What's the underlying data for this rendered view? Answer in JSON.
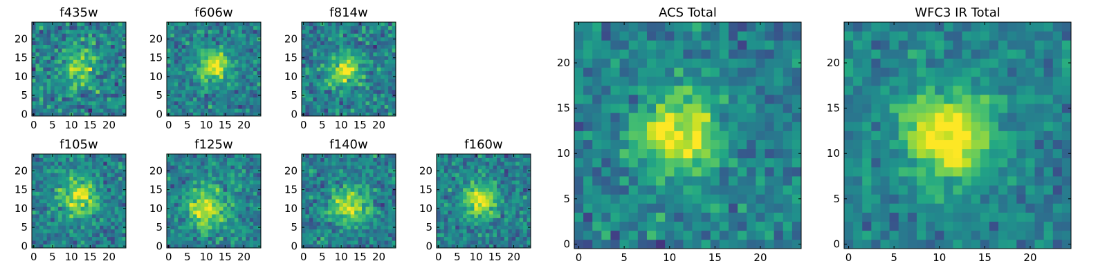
{
  "figure": {
    "background": "#ffffff",
    "colormap": "viridis"
  },
  "chart_data": [
    {
      "type": "heatmap",
      "title": "f435w",
      "grid": [
        25,
        25
      ],
      "xlim": [
        -0.5,
        24.5
      ],
      "ylim": [
        -0.5,
        24.5
      ],
      "xticks": [
        "0",
        "5",
        "10",
        "15",
        "20"
      ],
      "yticks": [
        "0",
        "5",
        "10",
        "15",
        "20"
      ],
      "center": [
        12,
        13
      ],
      "peak": 0.55,
      "sigma": 3.5,
      "noise": 0.55,
      "seed": 11
    },
    {
      "type": "heatmap",
      "title": "f606w",
      "grid": [
        25,
        25
      ],
      "xlim": [
        -0.5,
        24.5
      ],
      "ylim": [
        -0.5,
        24.5
      ],
      "xticks": [
        "0",
        "5",
        "10",
        "15",
        "20"
      ],
      "yticks": [
        "0",
        "5",
        "10",
        "15",
        "20"
      ],
      "center": [
        12,
        13
      ],
      "peak": 0.75,
      "sigma": 3.0,
      "noise": 0.45,
      "seed": 23
    },
    {
      "type": "heatmap",
      "title": "f814w",
      "grid": [
        25,
        25
      ],
      "xlim": [
        -0.5,
        24.5
      ],
      "ylim": [
        -0.5,
        24.5
      ],
      "xticks": [
        "0",
        "5",
        "10",
        "15",
        "20"
      ],
      "yticks": [
        "0",
        "5",
        "10",
        "15",
        "20"
      ],
      "center": [
        11,
        12
      ],
      "peak": 0.7,
      "sigma": 3.0,
      "noise": 0.5,
      "seed": 37
    },
    {
      "type": "heatmap",
      "title": "f105w",
      "grid": [
        25,
        25
      ],
      "xlim": [
        -0.5,
        24.5
      ],
      "ylim": [
        -0.5,
        24.5
      ],
      "xticks": [
        "0",
        "5",
        "10",
        "15",
        "20"
      ],
      "yticks": [
        "0",
        "5",
        "10",
        "15",
        "20"
      ],
      "center": [
        12,
        13
      ],
      "peak": 0.7,
      "sigma": 3.5,
      "noise": 0.45,
      "seed": 41
    },
    {
      "type": "heatmap",
      "title": "f125w",
      "grid": [
        25,
        25
      ],
      "xlim": [
        -0.5,
        24.5
      ],
      "ylim": [
        -0.5,
        24.5
      ],
      "xticks": [
        "0",
        "5",
        "10",
        "15",
        "20"
      ],
      "yticks": [
        "0",
        "5",
        "10",
        "15",
        "20"
      ],
      "center": [
        10,
        10
      ],
      "peak": 0.7,
      "sigma": 4.0,
      "noise": 0.45,
      "seed": 53
    },
    {
      "type": "heatmap",
      "title": "f140w",
      "grid": [
        25,
        25
      ],
      "xlim": [
        -0.5,
        24.5
      ],
      "ylim": [
        -0.5,
        24.5
      ],
      "xticks": [
        "0",
        "5",
        "10",
        "15",
        "20"
      ],
      "yticks": [
        "0",
        "5",
        "10",
        "15",
        "20"
      ],
      "center": [
        12,
        11
      ],
      "peak": 0.7,
      "sigma": 3.5,
      "noise": 0.45,
      "seed": 67
    },
    {
      "type": "heatmap",
      "title": "f160w",
      "grid": [
        25,
        25
      ],
      "xlim": [
        -0.5,
        24.5
      ],
      "ylim": [
        -0.5,
        24.5
      ],
      "xticks": [
        "0",
        "5",
        "10",
        "15",
        "20"
      ],
      "yticks": [
        "0",
        "5",
        "10",
        "15",
        "20"
      ],
      "center": [
        11,
        12
      ],
      "peak": 0.8,
      "sigma": 3.0,
      "noise": 0.45,
      "seed": 79
    },
    {
      "type": "heatmap",
      "title": "ACS Total",
      "grid": [
        25,
        25
      ],
      "xlim": [
        -0.5,
        24.5
      ],
      "ylim": [
        -0.5,
        24.5
      ],
      "xticks": [
        "0",
        "5",
        "10",
        "15",
        "20"
      ],
      "yticks": [
        "0",
        "5",
        "10",
        "15",
        "20"
      ],
      "center": [
        11,
        12
      ],
      "peak": 0.85,
      "sigma": 3.0,
      "noise": 0.42,
      "seed": 97
    },
    {
      "type": "heatmap",
      "title": "WFC3 IR Total",
      "grid": [
        25,
        25
      ],
      "xlim": [
        -0.5,
        24.5
      ],
      "ylim": [
        -0.5,
        24.5
      ],
      "xticks": [
        "0",
        "5",
        "10",
        "15",
        "20"
      ],
      "yticks": [
        "0",
        "5",
        "10",
        "15",
        "20"
      ],
      "center": [
        11,
        12
      ],
      "peak": 0.9,
      "sigma": 3.5,
      "noise": 0.35,
      "seed": 131
    }
  ]
}
